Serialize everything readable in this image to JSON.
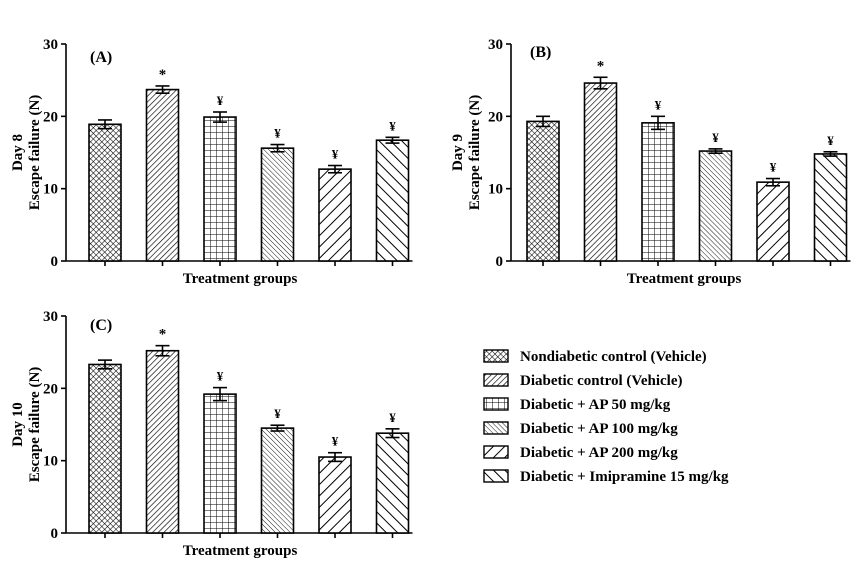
{
  "figure": {
    "legend": [
      {
        "label": "Nondiabetic control  (Vehicle)",
        "pattern": "crosshatch"
      },
      {
        "label": "Diabetic control  (Vehicle)",
        "pattern": "diag-right-dense"
      },
      {
        "label": "Diabetic + AP 50 mg/kg",
        "pattern": "grid"
      },
      {
        "label": "Diabetic + AP 100 mg/kg",
        "pattern": "diag-left-thin"
      },
      {
        "label": "Diabetic + AP 200 mg/kg",
        "pattern": "diag-right-wide"
      },
      {
        "label": "Diabetic + Imipramine 15 mg/kg",
        "pattern": "diag-left-wide"
      }
    ],
    "colors": {
      "stroke": "#000000",
      "background": "#ffffff"
    }
  },
  "chart_data": [
    {
      "type": "bar",
      "panel_label": "(A)",
      "ylabel_line1": "Day 8",
      "ylabel_line2": "Escape failure (N)",
      "xlabel": "Treatment groups",
      "ylim": [
        0,
        30
      ],
      "yticks": [
        0,
        10,
        20,
        30
      ],
      "categories": [
        "Nondiabetic control (Vehicle)",
        "Diabetic control (Vehicle)",
        "Diabetic + AP 50 mg/kg",
        "Diabetic + AP 100 mg/kg",
        "Diabetic + AP 200 mg/kg",
        "Diabetic + Imipramine 15 mg/kg"
      ],
      "values": [
        18.9,
        23.7,
        19.9,
        15.6,
        12.7,
        16.7
      ],
      "errors": [
        0.6,
        0.5,
        0.7,
        0.5,
        0.5,
        0.4
      ],
      "annotations": [
        "",
        "*",
        "¥",
        "¥",
        "¥",
        "¥"
      ]
    },
    {
      "type": "bar",
      "panel_label": "(B)",
      "ylabel_line1": "Day 9",
      "ylabel_line2": "Escape failure (N)",
      "xlabel": "Treatment groups",
      "ylim": [
        0,
        30
      ],
      "yticks": [
        0,
        10,
        20,
        30
      ],
      "categories": [
        "Nondiabetic control (Vehicle)",
        "Diabetic control (Vehicle)",
        "Diabetic + AP 50 mg/kg",
        "Diabetic + AP 100 mg/kg",
        "Diabetic + AP 200 mg/kg",
        "Diabetic + Imipramine 15 mg/kg"
      ],
      "values": [
        19.3,
        24.6,
        19.1,
        15.2,
        10.9,
        14.8
      ],
      "errors": [
        0.7,
        0.8,
        0.9,
        0.3,
        0.5,
        0.3
      ],
      "annotations": [
        "",
        "*",
        "¥",
        "¥",
        "¥",
        "¥"
      ]
    },
    {
      "type": "bar",
      "panel_label": "(C)",
      "ylabel_line1": "Day 10",
      "ylabel_line2": "Escape failure (N)",
      "xlabel": "Treatment groups",
      "ylim": [
        0,
        30
      ],
      "yticks": [
        0,
        10,
        20,
        30
      ],
      "categories": [
        "Nondiabetic control (Vehicle)",
        "Diabetic control (Vehicle)",
        "Diabetic + AP 50 mg/kg",
        "Diabetic + AP 100 mg/kg",
        "Diabetic + AP 200 mg/kg",
        "Diabetic + Imipramine 15 mg/kg"
      ],
      "values": [
        23.3,
        25.2,
        19.2,
        14.5,
        10.5,
        13.8
      ],
      "errors": [
        0.6,
        0.7,
        0.9,
        0.4,
        0.6,
        0.6
      ],
      "annotations": [
        "",
        "*",
        "¥",
        "¥",
        "¥",
        "¥"
      ]
    }
  ]
}
